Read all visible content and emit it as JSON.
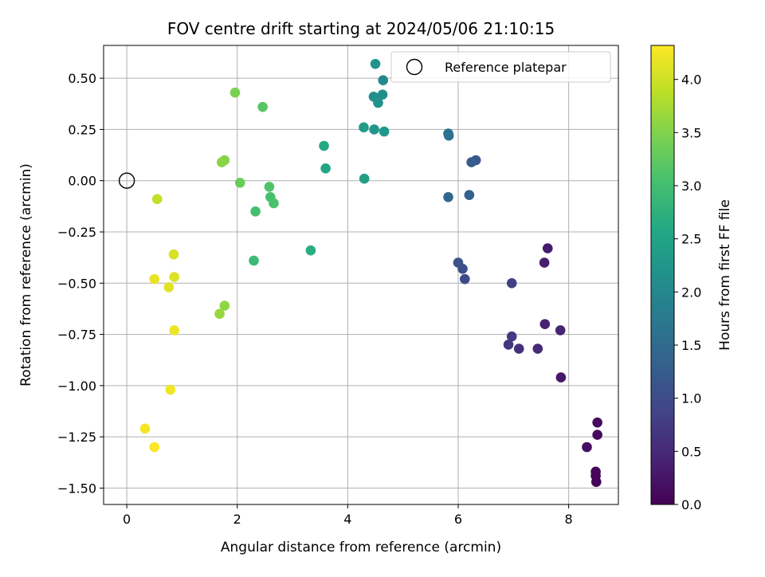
{
  "chart_data": {
    "type": "scatter",
    "title": "FOV centre drift starting at 2024/05/06 21:10:15",
    "xlabel": "Angular distance from reference (arcmin)",
    "ylabel": "Rotation from reference (arcmin)",
    "xlim": [
      -0.42,
      8.9
    ],
    "ylim": [
      -1.58,
      0.66
    ],
    "xticks": [
      0,
      2,
      4,
      6,
      8
    ],
    "xtick_labels": [
      "0",
      "2",
      "4",
      "6",
      "8"
    ],
    "yticks": [
      0.5,
      0.25,
      0.0,
      -0.25,
      -0.5,
      -0.75,
      -1.0,
      -1.25,
      -1.5
    ],
    "ytick_labels": [
      "0.50",
      "0.25",
      "0.00",
      "−0.25",
      "−0.50",
      "−0.75",
      "−1.00",
      "−1.25",
      "−1.50"
    ],
    "grid": true,
    "colormap": "viridis",
    "colorbar": {
      "label": "Hours from first FF file",
      "range": [
        0.0,
        4.32
      ],
      "ticks": [
        0.0,
        0.5,
        1.0,
        1.5,
        2.0,
        2.5,
        3.0,
        3.5,
        4.0
      ],
      "tick_labels": [
        "0.0",
        "0.5",
        "1.0",
        "1.5",
        "2.0",
        "2.5",
        "3.0",
        "3.5",
        "4.0"
      ]
    },
    "legend": {
      "placement": "top-right",
      "entries": [
        {
          "label": "Reference platepar",
          "marker": "open-circle",
          "color": "#000000"
        }
      ]
    },
    "reference_point": {
      "x": 0.0,
      "y": 0.0
    },
    "points": [
      {
        "x": 8.5,
        "y": -1.47,
        "c": 0.02
      },
      {
        "x": 8.49,
        "y": -1.44,
        "c": 0.05
      },
      {
        "x": 8.49,
        "y": -1.42,
        "c": 0.08
      },
      {
        "x": 8.52,
        "y": -1.24,
        "c": 0.11
      },
      {
        "x": 8.52,
        "y": -1.18,
        "c": 0.14
      },
      {
        "x": 8.33,
        "y": -1.3,
        "c": 0.17
      },
      {
        "x": 7.86,
        "y": -0.96,
        "c": 0.27
      },
      {
        "x": 7.62,
        "y": -0.33,
        "c": 0.32
      },
      {
        "x": 7.56,
        "y": -0.4,
        "c": 0.36
      },
      {
        "x": 7.57,
        "y": -0.7,
        "c": 0.4
      },
      {
        "x": 7.85,
        "y": -0.73,
        "c": 0.43
      },
      {
        "x": 7.44,
        "y": -0.82,
        "c": 0.52
      },
      {
        "x": 7.1,
        "y": -0.82,
        "c": 0.6
      },
      {
        "x": 6.91,
        "y": -0.8,
        "c": 0.68
      },
      {
        "x": 6.97,
        "y": -0.76,
        "c": 0.74
      },
      {
        "x": 6.97,
        "y": -0.5,
        "c": 0.8
      },
      {
        "x": 6.12,
        "y": -0.48,
        "c": 1.0
      },
      {
        "x": 6.08,
        "y": -0.43,
        "c": 1.05
      },
      {
        "x": 6.0,
        "y": -0.4,
        "c": 1.1
      },
      {
        "x": 6.32,
        "y": 0.1,
        "c": 1.2
      },
      {
        "x": 6.24,
        "y": 0.09,
        "c": 1.26
      },
      {
        "x": 6.2,
        "y": -0.07,
        "c": 1.32
      },
      {
        "x": 5.82,
        "y": -0.08,
        "c": 1.42
      },
      {
        "x": 5.83,
        "y": 0.22,
        "c": 1.55
      },
      {
        "x": 5.82,
        "y": 0.23,
        "c": 1.62
      },
      {
        "x": 4.64,
        "y": 0.49,
        "c": 2.02
      },
      {
        "x": 4.63,
        "y": 0.42,
        "c": 2.08
      },
      {
        "x": 4.47,
        "y": 0.41,
        "c": 2.12
      },
      {
        "x": 4.55,
        "y": 0.38,
        "c": 2.18
      },
      {
        "x": 4.5,
        "y": 0.57,
        "c": 2.22
      },
      {
        "x": 4.48,
        "y": 0.25,
        "c": 2.26
      },
      {
        "x": 4.66,
        "y": 0.24,
        "c": 2.3
      },
      {
        "x": 4.29,
        "y": 0.26,
        "c": 2.36
      },
      {
        "x": 4.3,
        "y": 0.01,
        "c": 2.42
      },
      {
        "x": 3.6,
        "y": 0.06,
        "c": 2.55
      },
      {
        "x": 3.57,
        "y": 0.17,
        "c": 2.62
      },
      {
        "x": 3.33,
        "y": -0.34,
        "c": 2.7
      },
      {
        "x": 2.3,
        "y": -0.39,
        "c": 2.92
      },
      {
        "x": 2.33,
        "y": -0.15,
        "c": 3.0
      },
      {
        "x": 2.6,
        "y": -0.08,
        "c": 3.05
      },
      {
        "x": 2.66,
        "y": -0.11,
        "c": 3.08
      },
      {
        "x": 2.58,
        "y": -0.03,
        "c": 3.12
      },
      {
        "x": 2.46,
        "y": 0.36,
        "c": 3.2
      },
      {
        "x": 2.05,
        "y": -0.01,
        "c": 3.33
      },
      {
        "x": 1.96,
        "y": 0.43,
        "c": 3.45
      },
      {
        "x": 1.77,
        "y": 0.1,
        "c": 3.52
      },
      {
        "x": 1.72,
        "y": 0.09,
        "c": 3.56
      },
      {
        "x": 1.77,
        "y": -0.61,
        "c": 3.6
      },
      {
        "x": 1.68,
        "y": -0.65,
        "c": 3.64
      },
      {
        "x": 0.55,
        "y": -0.09,
        "c": 3.92
      },
      {
        "x": 0.85,
        "y": -0.36,
        "c": 4.05
      },
      {
        "x": 0.86,
        "y": -0.47,
        "c": 4.1
      },
      {
        "x": 0.76,
        "y": -0.52,
        "c": 4.13
      },
      {
        "x": 0.5,
        "y": -0.48,
        "c": 4.18
      },
      {
        "x": 0.86,
        "y": -0.73,
        "c": 4.2
      },
      {
        "x": 0.79,
        "y": -1.02,
        "c": 4.24
      },
      {
        "x": 0.33,
        "y": -1.21,
        "c": 4.26
      },
      {
        "x": 0.5,
        "y": -1.3,
        "c": 4.3
      }
    ]
  }
}
